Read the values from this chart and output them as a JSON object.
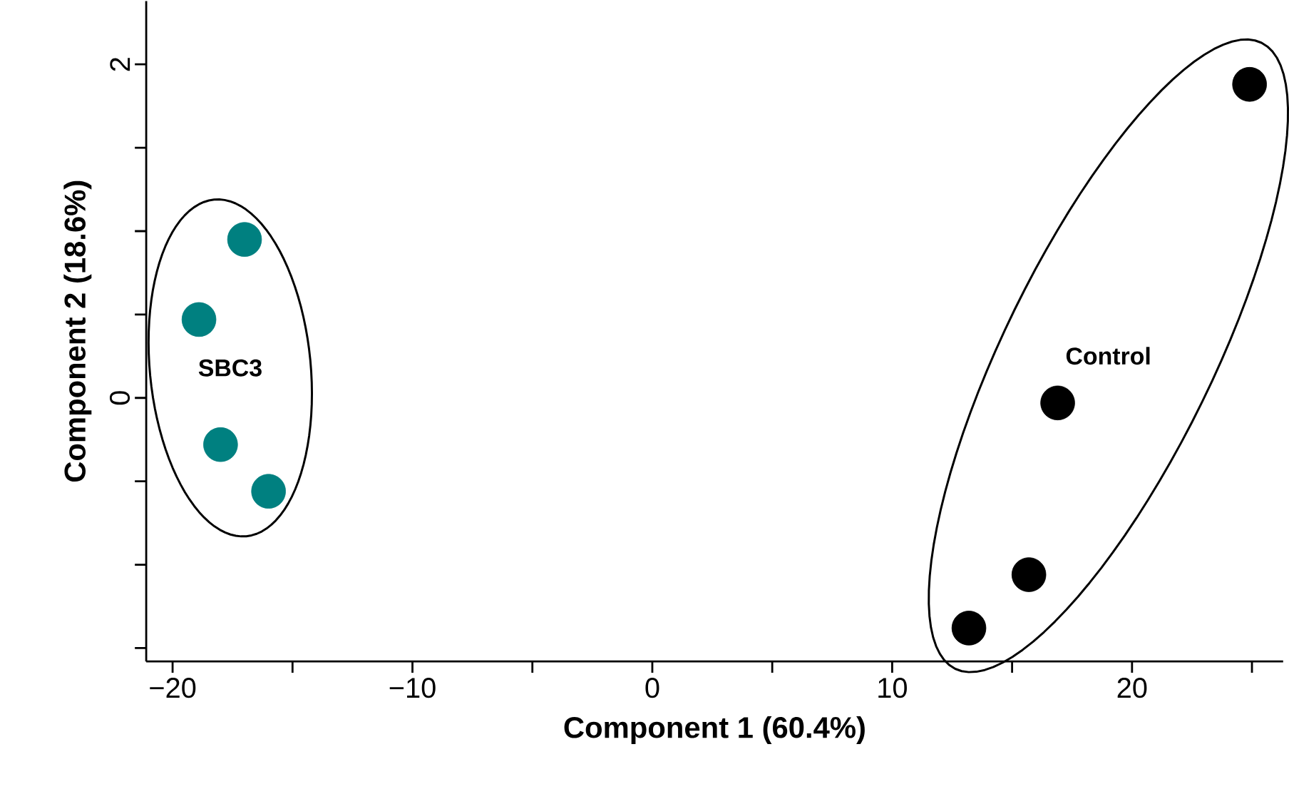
{
  "chart_data": {
    "type": "scatter",
    "xlabel": "Component 1 (60.4%)",
    "ylabel": "Component 2 (18.6%)",
    "xlim": [
      -21.1,
      26.3
    ],
    "ylim": [
      -1.58,
      2.38
    ],
    "xticks": [
      {
        "value": -20,
        "label": "−20"
      },
      {
        "value": -15,
        "label": null
      },
      {
        "value": -10,
        "label": "−10"
      },
      {
        "value": -5,
        "label": null
      },
      0,
      {
        "value": 5,
        "label": null
      },
      10,
      {
        "value": 15,
        "label": null
      },
      20,
      {
        "value": 25,
        "label": null
      }
    ],
    "yticks": [
      {
        "value": -1.5,
        "label": null
      },
      {
        "value": -1,
        "label": null
      },
      {
        "value": -0.5,
        "label": null
      },
      0,
      {
        "value": 0.5,
        "label": null
      },
      {
        "value": 1,
        "label": null
      },
      {
        "value": 1.5,
        "label": null
      },
      2
    ],
    "marker": "circle",
    "series": [
      {
        "color": "#008080",
        "x": [
          -17.0,
          -18.9,
          -18.0,
          -16.0
        ],
        "values": [
          0.95,
          0.47,
          -0.28,
          -0.56
        ]
      },
      {
        "color": "#000000",
        "x": [
          24.9,
          16.9,
          15.7,
          13.2
        ],
        "values": [
          1.88,
          -0.03,
          -1.06,
          -1.38
        ]
      }
    ],
    "annotations": [
      "SBC3",
      "Control"
    ]
  }
}
